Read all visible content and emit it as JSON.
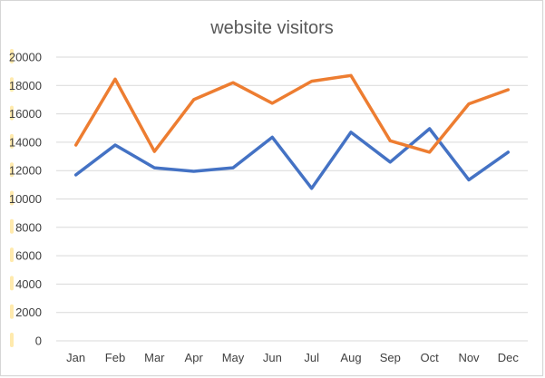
{
  "chart_data": {
    "type": "line",
    "title": "website visitors",
    "xlabel": "",
    "ylabel": "",
    "categories": [
      "Jan",
      "Feb",
      "Mar",
      "Apr",
      "May",
      "Jun",
      "Jul",
      "Aug",
      "Sep",
      "Oct",
      "Nov",
      "Dec"
    ],
    "ylim": [
      0,
      20000
    ],
    "yticks": [
      "0",
      "2000",
      "4000",
      "6000",
      "8000",
      "10000",
      "12000",
      "14000",
      "16000",
      "18000",
      "20000"
    ],
    "grid": true,
    "legend": "none",
    "series": [
      {
        "color": "#4472c4",
        "values": [
          11700,
          13800,
          12200,
          11950,
          12200,
          14350,
          10750,
          14700,
          12600,
          14950,
          11350,
          13300
        ]
      },
      {
        "color": "#ed7d31",
        "values": [
          13800,
          18450,
          13350,
          17000,
          18200,
          16750,
          18300,
          18700,
          14100,
          13300,
          16700,
          17700
        ]
      }
    ]
  }
}
